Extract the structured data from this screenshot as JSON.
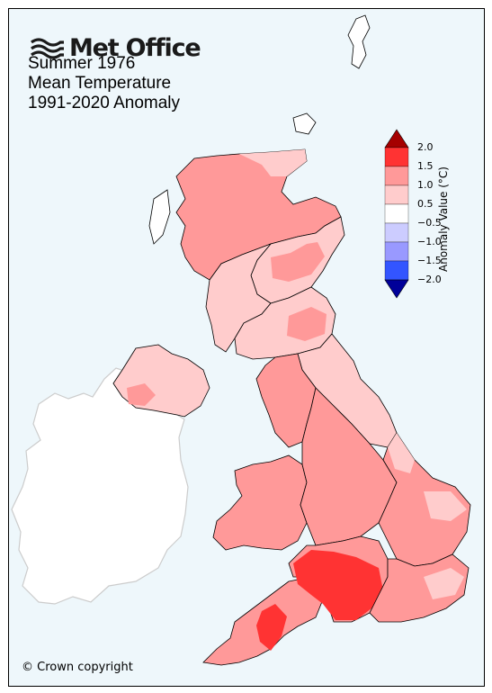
{
  "branding": {
    "logo_text": "Met Office",
    "logo_icon": "met-office-wave-icon"
  },
  "titles": {
    "line1": "Summer 1976",
    "line2": "Mean Temperature",
    "line3": "1991-2020 Anomaly"
  },
  "colorbar": {
    "title": "Anomaly Value (°C)",
    "tick_labels": [
      "2.0",
      "1.5",
      "1.0",
      "0.5",
      "−0.5",
      "−1.0",
      "−1.5",
      "−2.0"
    ],
    "bands": [
      {
        "range": "above 2.0",
        "color": "#a50000"
      },
      {
        "range": "1.5 to 2.0",
        "color": "#ff3333"
      },
      {
        "range": "1.0 to 1.5",
        "color": "#ff9999"
      },
      {
        "range": "0.5 to 1.0",
        "color": "#ffcccc"
      },
      {
        "range": "-0.5 to 0.5",
        "color": "#ffffff"
      },
      {
        "range": "-1.0 to -0.5",
        "color": "#ccccff"
      },
      {
        "range": "-1.5 to -1.0",
        "color": "#9999ff"
      },
      {
        "range": "-2.0 to -1.5",
        "color": "#3355ff"
      },
      {
        "range": "below -2.0",
        "color": "#000099"
      }
    ]
  },
  "map_regions": [
    {
      "name": "Northern Scotland",
      "anomaly_band": "0.5 to 1.5"
    },
    {
      "name": "Eastern Scotland",
      "anomaly_band": "0.5 to 1.0"
    },
    {
      "name": "Western Scotland",
      "anomaly_band": "0.5 to 1.0"
    },
    {
      "name": "Northern Ireland",
      "anomaly_band": "0.5 to 1.0"
    },
    {
      "name": "North West England",
      "anomaly_band": "1.0 to 1.5"
    },
    {
      "name": "North East England",
      "anomaly_band": "0.5 to 1.0"
    },
    {
      "name": "Wales",
      "anomaly_band": "1.0 to 1.5"
    },
    {
      "name": "Midlands",
      "anomaly_band": "1.0 to 1.5"
    },
    {
      "name": "East Anglia",
      "anomaly_band": "0.5 to 1.5"
    },
    {
      "name": "Southern England",
      "anomaly_band": "1.5 to 2.0"
    },
    {
      "name": "South West England",
      "anomaly_band": "1.0 to 2.0"
    },
    {
      "name": "South East England",
      "anomaly_band": "1.0 to 1.5"
    }
  ],
  "colors": {
    "sea": "#eef7fb",
    "non_uk_land": "#ffffff",
    "non_uk_outline": "#cccccc"
  },
  "footer": {
    "copyright": "© Crown copyright"
  }
}
